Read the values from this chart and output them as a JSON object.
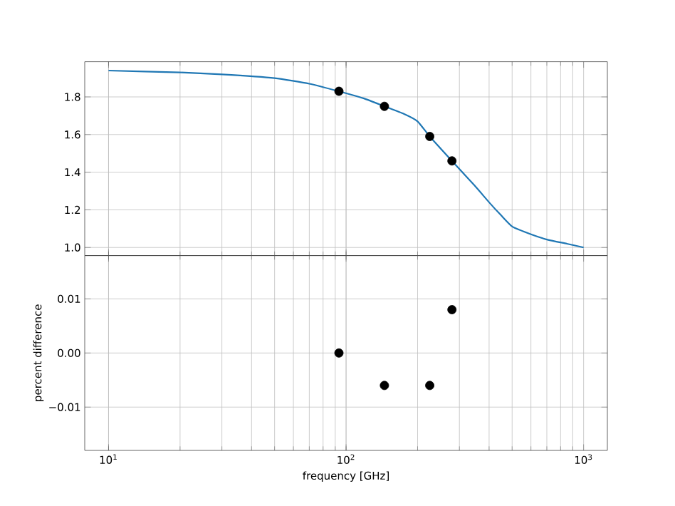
{
  "chart_data": [
    {
      "type": "line",
      "xlim": [
        7.94,
        1259
      ],
      "ylim": [
        0.957,
        1.987
      ],
      "log": "x",
      "grid": "both",
      "xticks": [
        10,
        100,
        1000
      ],
      "yticks": [
        {
          "value": 1.0,
          "label": "1.0"
        },
        1.2,
        1.4,
        1.6,
        1.8
      ],
      "tick_labels": "y",
      "series": [
        {
          "color": "#1f77b4",
          "marker": "none",
          "x": [
            10,
            20,
            30,
            50,
            70,
            93,
            120,
            145,
            175,
            200,
            225,
            279,
            347,
            400,
            450,
            502,
            600,
            710,
            850,
            1000
          ],
          "values": [
            1.94,
            1.93,
            1.92,
            1.9,
            1.87,
            1.83,
            1.79,
            1.75,
            1.71,
            1.67,
            1.59,
            1.46,
            1.33,
            1.24,
            1.17,
            1.11,
            1.07,
            1.04,
            1.02,
            1.0
          ]
        },
        {
          "type": "scatter",
          "color": "#000000",
          "marker": "circle",
          "x": [
            93.3,
            145,
            225,
            279
          ],
          "values": [
            1.83,
            1.75,
            1.59,
            1.46
          ]
        }
      ]
    },
    {
      "type": "scatter",
      "xlim": [
        7.94,
        1259
      ],
      "ylim": [
        -0.018,
        0.018
      ],
      "log": "x",
      "grid": "both",
      "xticks": [
        {
          "value": 10,
          "label": "10$^{1}$"
        },
        {
          "value": 100,
          "label": "10$^{2}$"
        },
        {
          "value": 1000,
          "label": "10$^{3}$"
        }
      ],
      "yticks": [
        {
          "value": -0.01,
          "label": "−0.01"
        },
        {
          "value": 0.0,
          "label": "0.00"
        },
        {
          "value": 0.01,
          "label": "0.01"
        }
      ],
      "xlabel": "frequency [GHz]",
      "ylabel": "percent difference",
      "series": [
        {
          "color": "#000000",
          "marker": "circle",
          "x": [
            93.3,
            145,
            225,
            279
          ],
          "values": [
            0.0,
            -0.006,
            -0.006,
            0.008
          ]
        }
      ]
    }
  ]
}
